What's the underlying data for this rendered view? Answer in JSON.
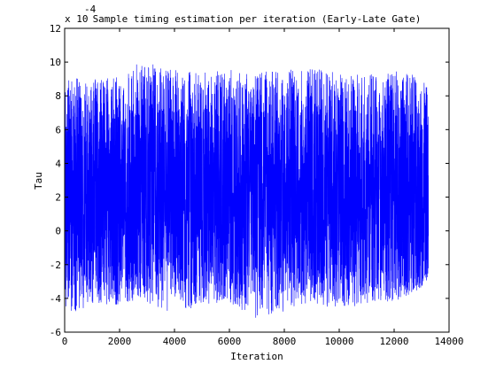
{
  "chart_data": {
    "type": "line",
    "title": "Sample timing estimation per iteration (Early-Late Gate)",
    "xlabel": "Iteration",
    "ylabel": "Tau",
    "y_multiplier_text": "x 10",
    "y_multiplier_exponent": "-4",
    "xlim": [
      0,
      14000
    ],
    "ylim": [
      -6,
      12
    ],
    "x_ticks": [
      0,
      2000,
      4000,
      6000,
      8000,
      10000,
      12000,
      14000
    ],
    "y_ticks": [
      -6,
      -4,
      -2,
      0,
      2,
      4,
      6,
      8,
      10,
      12
    ],
    "grid": false,
    "legend": "none",
    "series": [
      {
        "color": "#0000ff",
        "n_points": 13250,
        "envelope_x": [
          0,
          1000,
          2000,
          2800,
          4000,
          5000,
          6000,
          7000,
          8000,
          9000,
          10000,
          11000,
          12000,
          13000,
          13250
        ],
        "envelope_upper": [
          9.0,
          9.1,
          9.2,
          10.1,
          9.7,
          9.4,
          9.6,
          9.4,
          9.5,
          9.7,
          9.4,
          9.3,
          9.5,
          9.2,
          8.3
        ],
        "envelope_lower": [
          -5.2,
          -4.3,
          -4.4,
          -4.2,
          -5.1,
          -4.4,
          -4.3,
          -5.2,
          -4.8,
          -4.3,
          -4.8,
          -4.3,
          -4.2,
          -3.4,
          -1.6
        ],
        "dense_band": [
          -3.0,
          7.5
        ]
      }
    ]
  }
}
